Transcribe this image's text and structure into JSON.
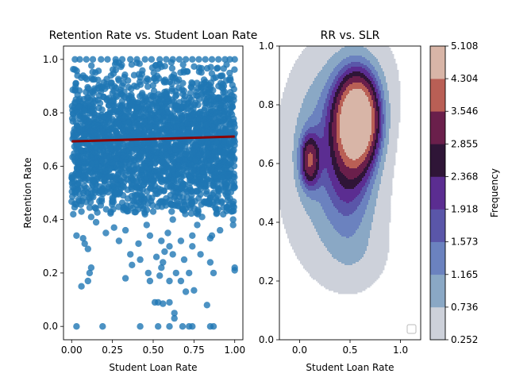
{
  "chart_data": [
    {
      "type": "scatter",
      "title": "Retention Rate vs. Student Loan Rate",
      "xlabel": "Student Loan Rate",
      "ylabel": "Retention Rate",
      "xlim": [
        -0.05,
        1.05
      ],
      "ylim": [
        -0.05,
        1.05
      ],
      "xticks": [
        0.0,
        0.25,
        0.5,
        0.75,
        1.0
      ],
      "xtick_labels": [
        "0.00",
        "0.25",
        "0.50",
        "0.75",
        "1.00"
      ],
      "yticks": [
        0.0,
        0.2,
        0.4,
        0.6,
        0.8,
        1.0
      ],
      "ytick_labels": [
        "0.0",
        "0.2",
        "0.4",
        "0.6",
        "0.8",
        "1.0"
      ],
      "point_color": "#1f77b4",
      "regression_color": "#8b0000",
      "regression_line": {
        "x": [
          0.0,
          1.0
        ],
        "y": [
          0.693,
          0.711
        ]
      },
      "points": [
        [
          0.02,
          1.0
        ],
        [
          0.05,
          1.0
        ],
        [
          0.09,
          1.0
        ],
        [
          0.13,
          1.0
        ],
        [
          0.18,
          1.0
        ],
        [
          0.22,
          1.0
        ],
        [
          0.27,
          1.0
        ],
        [
          0.31,
          1.0
        ],
        [
          0.36,
          1.0
        ],
        [
          0.4,
          1.0
        ],
        [
          0.45,
          1.0
        ],
        [
          0.49,
          1.0
        ],
        [
          0.54,
          1.0
        ],
        [
          0.58,
          1.0
        ],
        [
          0.62,
          1.0
        ],
        [
          0.66,
          1.0
        ],
        [
          0.7,
          1.0
        ],
        [
          0.74,
          1.0
        ],
        [
          0.78,
          1.0
        ],
        [
          0.82,
          1.0
        ],
        [
          0.86,
          1.0
        ],
        [
          0.9,
          1.0
        ],
        [
          0.94,
          1.0
        ],
        [
          0.97,
          1.0
        ],
        [
          1.0,
          1.0
        ],
        [
          0.03,
          0.0
        ],
        [
          0.19,
          0.0
        ],
        [
          0.42,
          0.0
        ],
        [
          0.53,
          0.0
        ],
        [
          0.6,
          0.0
        ],
        [
          0.68,
          0.0
        ],
        [
          0.72,
          0.0
        ],
        [
          0.74,
          0.0
        ],
        [
          0.85,
          0.0
        ],
        [
          0.87,
          0.0
        ],
        [
          0.63,
          0.03
        ],
        [
          0.63,
          0.05
        ],
        [
          0.51,
          0.09
        ],
        [
          0.53,
          0.09
        ],
        [
          0.56,
          0.085
        ],
        [
          0.6,
          0.09
        ],
        [
          0.83,
          0.08
        ],
        [
          0.7,
          0.13
        ],
        [
          0.75,
          0.135
        ],
        [
          0.1,
          0.17
        ],
        [
          0.06,
          0.15
        ],
        [
          0.6,
          0.17
        ],
        [
          0.48,
          0.17
        ],
        [
          0.67,
          0.17
        ],
        [
          0.33,
          0.18
        ],
        [
          0.54,
          0.19
        ],
        [
          0.11,
          0.2
        ],
        [
          0.47,
          0.2
        ],
        [
          0.64,
          0.2
        ],
        [
          0.72,
          0.2
        ],
        [
          0.87,
          0.2
        ],
        [
          0.12,
          0.22
        ],
        [
          0.37,
          0.23
        ],
        [
          0.55,
          0.22
        ],
        [
          1.0,
          0.21
        ],
        [
          1.0,
          0.22
        ],
        [
          0.56,
          0.24
        ],
        [
          0.85,
          0.24
        ],
        [
          0.42,
          0.25
        ],
        [
          0.52,
          0.26
        ],
        [
          0.69,
          0.25
        ],
        [
          0.36,
          0.27
        ],
        [
          0.57,
          0.28
        ],
        [
          0.62,
          0.27
        ],
        [
          0.79,
          0.27
        ],
        [
          0.1,
          0.29
        ],
        [
          0.6,
          0.3
        ],
        [
          0.74,
          0.3
        ],
        [
          0.08,
          0.31
        ],
        [
          0.29,
          0.32
        ],
        [
          0.41,
          0.31
        ],
        [
          0.55,
          0.32
        ],
        [
          0.67,
          0.32
        ],
        [
          0.85,
          0.33
        ],
        [
          0.03,
          0.34
        ],
        [
          0.07,
          0.33
        ],
        [
          0.21,
          0.35
        ],
        [
          0.48,
          0.34
        ],
        [
          0.59,
          0.35
        ],
        [
          0.74,
          0.34
        ],
        [
          0.86,
          0.34
        ],
        [
          0.26,
          0.37
        ],
        [
          0.33,
          0.36
        ],
        [
          0.91,
          0.36
        ],
        [
          0.15,
          0.39
        ],
        [
          0.46,
          0.38
        ],
        [
          0.77,
          0.38
        ],
        [
          0.99,
          0.38
        ],
        [
          0.99,
          0.4
        ],
        [
          0.12,
          0.41
        ],
        [
          0.45,
          0.42
        ],
        [
          0.62,
          0.4
        ],
        [
          0.8,
          0.41
        ],
        [
          0.01,
          0.42
        ],
        [
          0.06,
          0.43
        ]
      ],
      "cloud": {
        "n": 2400,
        "seed": 7,
        "x_range": [
          0.0,
          1.0
        ],
        "y_mean": 0.68,
        "y_sd": 0.15,
        "y_range": [
          0.42,
          0.99
        ]
      }
    },
    {
      "type": "kde_contour",
      "title": "RR vs. SLR",
      "xlabel": "Student Loan Rate",
      "xlim": [
        -0.2,
        1.2
      ],
      "ylim": [
        0.0,
        1.0
      ],
      "xticks": [
        0.0,
        0.5,
        1.0
      ],
      "xtick_labels": [
        "0.0",
        "0.5",
        "1.0"
      ],
      "yticks": [
        0.0,
        0.2,
        0.4,
        0.6,
        0.8,
        1.0
      ],
      "ytick_labels": [
        "0.0",
        "0.2",
        "0.4",
        "0.6",
        "0.8",
        "1.0"
      ],
      "colorbar": {
        "label": "Frequency",
        "levels": [
          0.252,
          0.736,
          1.165,
          1.573,
          1.918,
          2.368,
          2.855,
          3.546,
          4.304,
          5.108
        ],
        "level_labels": [
          "0.252",
          "0.736",
          "1.165",
          "1.573",
          "1.918",
          "2.368",
          "2.855",
          "3.546",
          "4.304",
          "5.108"
        ],
        "colors": [
          "#cdd1da",
          "#8aa8c5",
          "#6b82bf",
          "#5a56a9",
          "#5b2d91",
          "#2f1537",
          "#6a1f4b",
          "#b95f55",
          "#d8b5a7"
        ]
      },
      "kde_components": [
        {
          "x": 0.58,
          "y": 0.75,
          "sx": 0.14,
          "sy": 0.1,
          "w": 5.4
        },
        {
          "x": 0.5,
          "y": 0.62,
          "sx": 0.17,
          "sy": 0.16,
          "w": 1.7
        },
        {
          "x": 0.1,
          "y": 0.61,
          "sx": 0.065,
          "sy": 0.06,
          "w": 2.6
        },
        {
          "x": 0.16,
          "y": 0.7,
          "sx": 0.23,
          "sy": 0.16,
          "w": 0.8
        },
        {
          "x": 0.35,
          "y": 0.45,
          "sx": 0.33,
          "sy": 0.17,
          "w": 0.7
        },
        {
          "x": 0.55,
          "y": 0.88,
          "sx": 0.3,
          "sy": 0.14,
          "w": 0.6
        },
        {
          "x": 0.56,
          "y": 0.28,
          "sx": 0.22,
          "sy": 0.08,
          "w": 0.3
        }
      ]
    }
  ]
}
